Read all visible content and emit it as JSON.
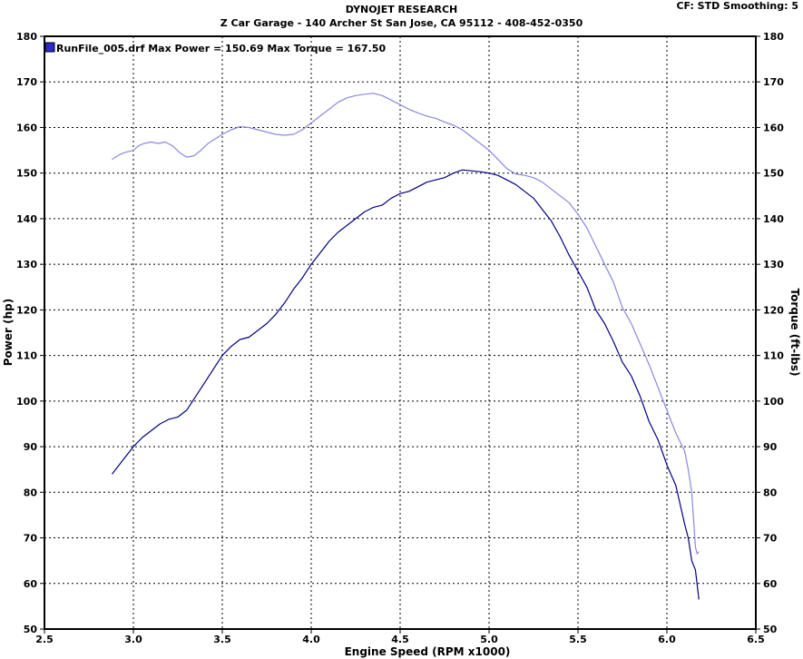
{
  "header": {
    "title": "DYNOJET RESEARCH",
    "subtitle": "Z Car Garage - 140 Archer St San Jose, CA 95112 - 408-452-0350",
    "corner": "CF: STD  Smoothing: 5"
  },
  "chart_data": {
    "type": "line",
    "title": "DYNOJET RESEARCH",
    "xlabel": "Engine Speed (RPM x1000)",
    "ylabel": "Power (hp)",
    "ylabel_right": "Torque (ft-lbs)",
    "xlim": [
      2.5,
      6.5
    ],
    "ylim": [
      50,
      180
    ],
    "ylim_right": [
      50,
      180
    ],
    "x_ticks": [
      "2.5",
      "3.0",
      "3.5",
      "4.0",
      "4.5",
      "5.0",
      "5.5",
      "6.0",
      "6.5"
    ],
    "y_ticks": [
      "50",
      "60",
      "70",
      "80",
      "90",
      "100",
      "110",
      "120",
      "130",
      "140",
      "150",
      "160",
      "170",
      "180"
    ],
    "grid": true,
    "legend": {
      "placement": "top-left",
      "text": "RunFile_005.drf Max Power = 150.69     Max Torque = 167.50",
      "color": "#2a2ad0"
    },
    "series": [
      {
        "axis": "left",
        "color": "#000080",
        "points": [
          [
            2.88,
            84
          ],
          [
            2.92,
            86
          ],
          [
            2.95,
            87.5
          ],
          [
            3.0,
            90
          ],
          [
            3.05,
            92
          ],
          [
            3.1,
            93.5
          ],
          [
            3.15,
            95
          ],
          [
            3.2,
            96
          ],
          [
            3.25,
            96.5
          ],
          [
            3.3,
            98
          ],
          [
            3.35,
            101
          ],
          [
            3.4,
            104
          ],
          [
            3.45,
            107
          ],
          [
            3.5,
            110
          ],
          [
            3.55,
            112
          ],
          [
            3.6,
            113.5
          ],
          [
            3.65,
            114
          ],
          [
            3.7,
            115.5
          ],
          [
            3.75,
            117
          ],
          [
            3.8,
            119
          ],
          [
            3.85,
            121.5
          ],
          [
            3.9,
            124.5
          ],
          [
            3.95,
            127
          ],
          [
            4.0,
            130
          ],
          [
            4.05,
            132.5
          ],
          [
            4.1,
            135
          ],
          [
            4.15,
            137
          ],
          [
            4.2,
            138.5
          ],
          [
            4.25,
            140
          ],
          [
            4.3,
            141.5
          ],
          [
            4.35,
            142.5
          ],
          [
            4.4,
            143
          ],
          [
            4.45,
            144.5
          ],
          [
            4.5,
            145.5
          ],
          [
            4.55,
            146
          ],
          [
            4.6,
            147
          ],
          [
            4.65,
            148
          ],
          [
            4.7,
            148.5
          ],
          [
            4.75,
            149
          ],
          [
            4.8,
            150
          ],
          [
            4.85,
            150.7
          ],
          [
            4.9,
            150.5
          ],
          [
            4.95,
            150.3
          ],
          [
            5.0,
            150
          ],
          [
            5.05,
            149.5
          ],
          [
            5.1,
            148.5
          ],
          [
            5.15,
            147.5
          ],
          [
            5.2,
            146
          ],
          [
            5.25,
            144.5
          ],
          [
            5.3,
            142
          ],
          [
            5.35,
            139.5
          ],
          [
            5.4,
            136
          ],
          [
            5.45,
            132
          ],
          [
            5.5,
            128.5
          ],
          [
            5.55,
            125
          ],
          [
            5.6,
            120
          ],
          [
            5.65,
            117
          ],
          [
            5.7,
            113
          ],
          [
            5.75,
            108.5
          ],
          [
            5.8,
            105.5
          ],
          [
            5.85,
            101
          ],
          [
            5.9,
            95.5
          ],
          [
            5.95,
            91.5
          ],
          [
            6.0,
            86
          ],
          [
            6.05,
            81.5
          ],
          [
            6.1,
            73
          ],
          [
            6.12,
            70
          ],
          [
            6.14,
            65
          ],
          [
            6.16,
            63
          ],
          [
            6.18,
            56.5
          ]
        ]
      },
      {
        "axis": "right",
        "color": "#8888e0",
        "points": [
          [
            2.88,
            153
          ],
          [
            2.92,
            154
          ],
          [
            2.95,
            154.5
          ],
          [
            3.0,
            155
          ],
          [
            3.03,
            156
          ],
          [
            3.06,
            156.5
          ],
          [
            3.1,
            156.8
          ],
          [
            3.14,
            156.5
          ],
          [
            3.18,
            156.8
          ],
          [
            3.22,
            156
          ],
          [
            3.26,
            154.5
          ],
          [
            3.3,
            153.5
          ],
          [
            3.34,
            153.8
          ],
          [
            3.38,
            155
          ],
          [
            3.42,
            156.5
          ],
          [
            3.46,
            157.5
          ],
          [
            3.5,
            158.5
          ],
          [
            3.55,
            159.5
          ],
          [
            3.6,
            160.2
          ],
          [
            3.65,
            160
          ],
          [
            3.7,
            159.5
          ],
          [
            3.75,
            159
          ],
          [
            3.8,
            158.5
          ],
          [
            3.85,
            158.3
          ],
          [
            3.9,
            158.5
          ],
          [
            3.95,
            159.5
          ],
          [
            4.0,
            161
          ],
          [
            4.05,
            162.5
          ],
          [
            4.1,
            164
          ],
          [
            4.15,
            165.5
          ],
          [
            4.2,
            166.5
          ],
          [
            4.25,
            167
          ],
          [
            4.3,
            167.3
          ],
          [
            4.35,
            167.5
          ],
          [
            4.4,
            167
          ],
          [
            4.45,
            166
          ],
          [
            4.5,
            165
          ],
          [
            4.55,
            164
          ],
          [
            4.6,
            163.2
          ],
          [
            4.65,
            162.5
          ],
          [
            4.7,
            162
          ],
          [
            4.75,
            161.2
          ],
          [
            4.8,
            160.5
          ],
          [
            4.85,
            159.5
          ],
          [
            4.9,
            158
          ],
          [
            4.95,
            156.5
          ],
          [
            5.0,
            155
          ],
          [
            5.05,
            153
          ],
          [
            5.1,
            151
          ],
          [
            5.15,
            149.8
          ],
          [
            5.2,
            149.5
          ],
          [
            5.25,
            149
          ],
          [
            5.3,
            148
          ],
          [
            5.35,
            146.5
          ],
          [
            5.4,
            145
          ],
          [
            5.45,
            143.5
          ],
          [
            5.5,
            141
          ],
          [
            5.55,
            138
          ],
          [
            5.6,
            134
          ],
          [
            5.65,
            130
          ],
          [
            5.7,
            126
          ],
          [
            5.75,
            120.5
          ],
          [
            5.8,
            117
          ],
          [
            5.85,
            112.5
          ],
          [
            5.9,
            108
          ],
          [
            5.95,
            103
          ],
          [
            6.0,
            98
          ],
          [
            6.05,
            93
          ],
          [
            6.1,
            89
          ],
          [
            6.12,
            85
          ],
          [
            6.14,
            80
          ],
          [
            6.15,
            74
          ],
          [
            6.16,
            68
          ],
          [
            6.17,
            66.5
          ],
          [
            6.18,
            67
          ]
        ]
      }
    ]
  }
}
